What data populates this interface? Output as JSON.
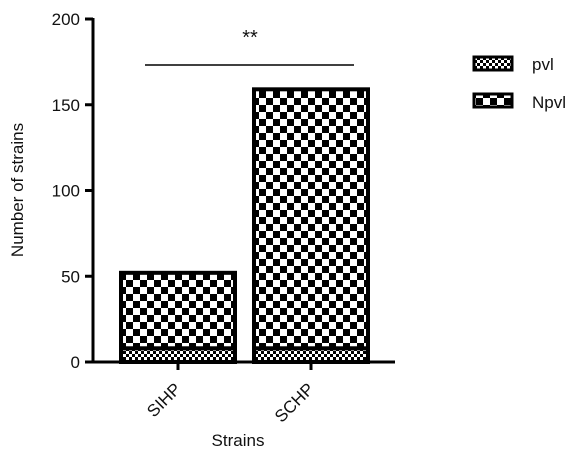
{
  "chart_data": {
    "type": "bar",
    "stacked": true,
    "title": "",
    "xlabel": "Strains",
    "ylabel": "Number of strains",
    "ylim": [
      0,
      200
    ],
    "yticks": [
      0,
      50,
      100,
      150,
      200
    ],
    "categories": [
      "SIHP",
      "SCHP"
    ],
    "series": [
      {
        "name": "pvl",
        "values": [
          8,
          8
        ],
        "pattern": "fine-checker"
      },
      {
        "name": "Npvl",
        "values": [
          44,
          151
        ],
        "pattern": "coarse-checker"
      }
    ],
    "annotations": [
      {
        "text": "**",
        "type": "significance-bracket",
        "between": [
          "SIHP",
          "SCHP"
        ]
      }
    ],
    "legend_position": "right",
    "grid": false,
    "colors": {
      "mark": "#000000",
      "fill_light": "#ffffff",
      "fill_dark": "#000000"
    }
  }
}
